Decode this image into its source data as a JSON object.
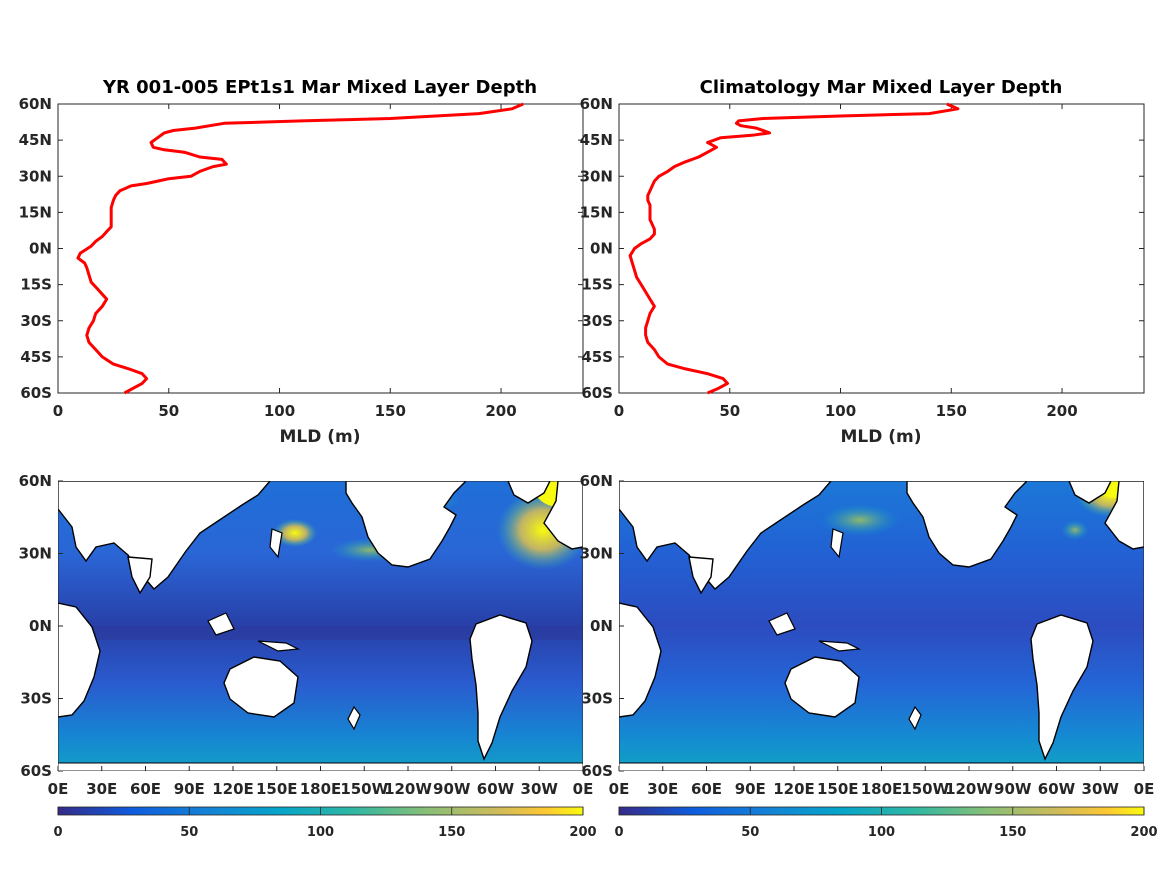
{
  "chart_data": [
    {
      "type": "line",
      "title": "YR 001-005 EPt1s1 Mar Mixed Layer Depth",
      "xlabel": "MLD (m)",
      "ylabel": "",
      "xlim": [
        0,
        237
      ],
      "ylim": [
        -60,
        60
      ],
      "xticks": [
        "0",
        "50",
        "100",
        "150",
        "200"
      ],
      "yticks": [
        "60N",
        "45N",
        "30N",
        "15N",
        "0N",
        "15S",
        "30S",
        "45S",
        "60S"
      ],
      "color": "#ff0000",
      "series": [
        {
          "points": [
            [
              30,
              -60
            ],
            [
              34,
              -58
            ],
            [
              38,
              -56
            ],
            [
              40,
              -54
            ],
            [
              38,
              -52
            ],
            [
              32,
              -50
            ],
            [
              25,
              -48
            ],
            [
              20,
              -45
            ],
            [
              17,
              -42
            ],
            [
              14,
              -39
            ],
            [
              13,
              -36
            ],
            [
              14,
              -33
            ],
            [
              16,
              -30
            ],
            [
              17,
              -27
            ],
            [
              20,
              -24
            ],
            [
              22,
              -21
            ],
            [
              20,
              -19
            ],
            [
              18,
              -17
            ],
            [
              15,
              -14
            ],
            [
              14,
              -11
            ],
            [
              13,
              -8
            ],
            [
              12,
              -6
            ],
            [
              9,
              -4
            ],
            [
              10,
              -2
            ],
            [
              15,
              1
            ],
            [
              17,
              3
            ],
            [
              20,
              5
            ],
            [
              22,
              7
            ],
            [
              24,
              9
            ],
            [
              24,
              11
            ],
            [
              24,
              14
            ],
            [
              24,
              17
            ],
            [
              25,
              20
            ],
            [
              26,
              22
            ],
            [
              28,
              24
            ],
            [
              33,
              26
            ],
            [
              40,
              27
            ],
            [
              45,
              28
            ],
            [
              50,
              29
            ],
            [
              60,
              30
            ],
            [
              64,
              32
            ],
            [
              70,
              34
            ],
            [
              76,
              35
            ],
            [
              74,
              37
            ],
            [
              64,
              38
            ],
            [
              57,
              40
            ],
            [
              48,
              41
            ],
            [
              43,
              42
            ],
            [
              42,
              44
            ],
            [
              45,
              46
            ],
            [
              48,
              48
            ],
            [
              52,
              49
            ],
            [
              62,
              50
            ],
            [
              75,
              52
            ],
            [
              110,
              53
            ],
            [
              150,
              54
            ],
            [
              190,
              56
            ],
            [
              205,
              58
            ],
            [
              210,
              60
            ]
          ]
        }
      ]
    },
    {
      "type": "line",
      "title": "Climatology Mar Mixed Layer Depth",
      "xlabel": "MLD (m)",
      "ylabel": "",
      "xlim": [
        0,
        237
      ],
      "ylim": [
        -60,
        60
      ],
      "xticks": [
        "0",
        "50",
        "100",
        "150",
        "200"
      ],
      "yticks": [
        "60N",
        "45N",
        "30N",
        "15N",
        "0N",
        "15S",
        "30S",
        "45S",
        "60S"
      ],
      "color": "#ff0000",
      "series": [
        {
          "points": [
            [
              40,
              -60
            ],
            [
              45,
              -58
            ],
            [
              49,
              -56
            ],
            [
              47,
              -54
            ],
            [
              40,
              -52
            ],
            [
              30,
              -50
            ],
            [
              22,
              -48
            ],
            [
              18,
              -45
            ],
            [
              16,
              -42
            ],
            [
              13,
              -39
            ],
            [
              12,
              -36
            ],
            [
              12,
              -33
            ],
            [
              13,
              -30
            ],
            [
              14,
              -27
            ],
            [
              16,
              -24
            ],
            [
              14,
              -21
            ],
            [
              12,
              -18
            ],
            [
              10,
              -15
            ],
            [
              8,
              -12
            ],
            [
              7,
              -9
            ],
            [
              6,
              -6
            ],
            [
              5,
              -3
            ],
            [
              7,
              0
            ],
            [
              10,
              2
            ],
            [
              14,
              4
            ],
            [
              16,
              6
            ],
            [
              16,
              8
            ],
            [
              15,
              10
            ],
            [
              14,
              12
            ],
            [
              14,
              14
            ],
            [
              14,
              16
            ],
            [
              14,
              18
            ],
            [
              13,
              20
            ],
            [
              13,
              22
            ],
            [
              14,
              24
            ],
            [
              15,
              26
            ],
            [
              16,
              28
            ],
            [
              18,
              30
            ],
            [
              22,
              32
            ],
            [
              25,
              34
            ],
            [
              30,
              36
            ],
            [
              36,
              38
            ],
            [
              40,
              40
            ],
            [
              44,
              42
            ],
            [
              40,
              44
            ],
            [
              46,
              46
            ],
            [
              60,
              47
            ],
            [
              68,
              48
            ],
            [
              62,
              50
            ],
            [
              55,
              51
            ],
            [
              53,
              52
            ],
            [
              54,
              53
            ],
            [
              65,
              54
            ],
            [
              100,
              55
            ],
            [
              140,
              56
            ],
            [
              153,
              58
            ],
            [
              148,
              60
            ]
          ]
        }
      ]
    },
    {
      "type": "heatmap",
      "subtype": "global-map",
      "yticks": [
        "60N",
        "30N",
        "0N",
        "30S",
        "60S"
      ],
      "xticks": [
        "0E",
        "30E",
        "60E",
        "90E",
        "120E",
        "150E",
        "180E",
        "150W",
        "120W",
        "90W",
        "60W",
        "30W",
        "0E"
      ],
      "colorbar": {
        "ticks": [
          "0",
          "50",
          "100",
          "150",
          "200"
        ],
        "range": [
          0,
          200
        ],
        "colormap": "parula"
      }
    },
    {
      "type": "heatmap",
      "subtype": "global-map",
      "yticks": [
        "60N",
        "30N",
        "0N",
        "30S",
        "60S"
      ],
      "xticks": [
        "0E",
        "30E",
        "60E",
        "90E",
        "120E",
        "150E",
        "180E",
        "150W",
        "120W",
        "90W",
        "60W",
        "30W",
        "0E"
      ],
      "colorbar": {
        "ticks": [
          "0",
          "50",
          "100",
          "150",
          "200"
        ],
        "range": [
          0,
          200
        ],
        "colormap": "parula"
      }
    }
  ]
}
